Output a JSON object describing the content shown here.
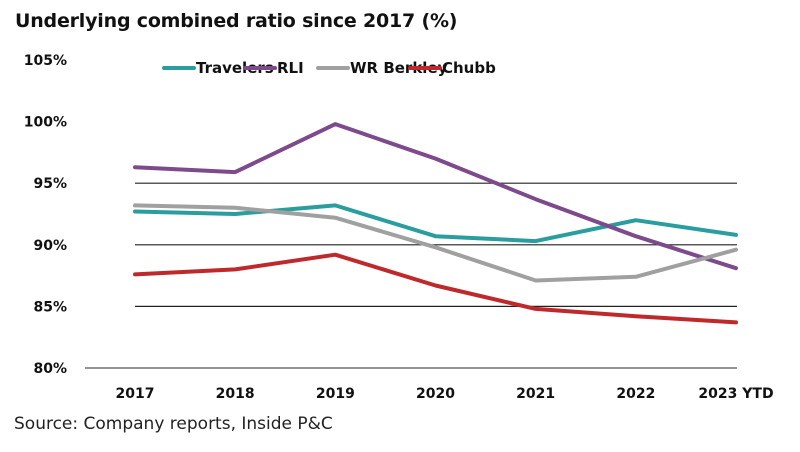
{
  "chart_data": {
    "type": "line",
    "title": "Underlying combined ratio since 2017 (%)",
    "source": "Source: Company reports, Inside P&C",
    "xlabel": "",
    "ylabel": "",
    "categories": [
      "2017",
      "2018",
      "2019",
      "2020",
      "2021",
      "2022",
      "2023 YTD"
    ],
    "ylim": [
      80,
      105
    ],
    "yticks": [
      80,
      85,
      90,
      95,
      100,
      105
    ],
    "ytick_labels": [
      "80%",
      "85%",
      "90%",
      "95%",
      "100%",
      "105%"
    ],
    "gridlines_at": [
      85,
      90,
      95
    ],
    "legend_position": "top-center",
    "series": [
      {
        "name": "Travelers",
        "color": "#2a9d9f",
        "values": [
          92.7,
          92.5,
          93.2,
          90.7,
          90.3,
          92.0,
          90.8
        ]
      },
      {
        "name": "RLI",
        "color": "#7d4a8c",
        "values": [
          96.3,
          95.9,
          99.8,
          97.0,
          93.7,
          90.7,
          88.1
        ]
      },
      {
        "name": "WR Berkley",
        "color": "#a0a0a0",
        "values": [
          93.2,
          93.0,
          92.2,
          89.8,
          87.1,
          87.4,
          89.6
        ]
      },
      {
        "name": "Chubb",
        "color": "#c0292b",
        "values": [
          87.6,
          88.0,
          89.2,
          86.7,
          84.8,
          84.2,
          83.7
        ]
      }
    ]
  }
}
